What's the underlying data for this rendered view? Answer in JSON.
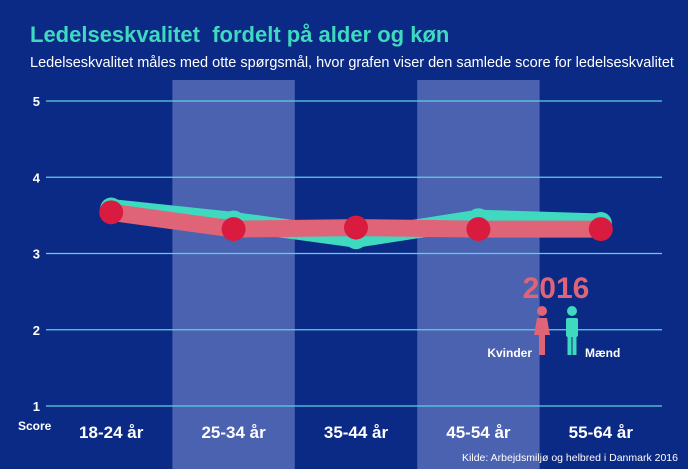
{
  "title": "Ledelseskvalitet  fordelt på alder og køn",
  "subtitle": "Ledelseskvalitet måles med otte spørgsmål, hvor grafen viser den samlede score for ledelseskvalitet",
  "colors": {
    "background": "#0b2a86",
    "band": "#4a62b0",
    "women": "#e06478",
    "women_marker": "#d81b3f",
    "men": "#3fd9c0",
    "title": "#3fd9c0"
  },
  "legend": {
    "year": "2016",
    "women_label": "Kvinder",
    "men_label": "Mænd",
    "women_icon": "woman-icon",
    "men_icon": "man-icon"
  },
  "source": "Kilde: Arbejdsmiljø og helbred i Danmark 2016",
  "chart_data": {
    "type": "line",
    "categories": [
      "18-24 år",
      "25-34 år",
      "35-44 år",
      "45-54 år",
      "55-64 år"
    ],
    "series": [
      {
        "name": "Kvinder",
        "values": [
          3.54,
          3.32,
          3.34,
          3.32,
          3.32
        ]
      },
      {
        "name": "Mænd",
        "values": [
          3.59,
          3.42,
          3.2,
          3.45,
          3.4
        ]
      }
    ],
    "yticks": [
      1,
      2,
      3,
      4,
      5
    ],
    "ylim": [
      1,
      5
    ],
    "ylabel": "Score",
    "grid": true,
    "banded_columns": [
      1,
      3
    ]
  }
}
